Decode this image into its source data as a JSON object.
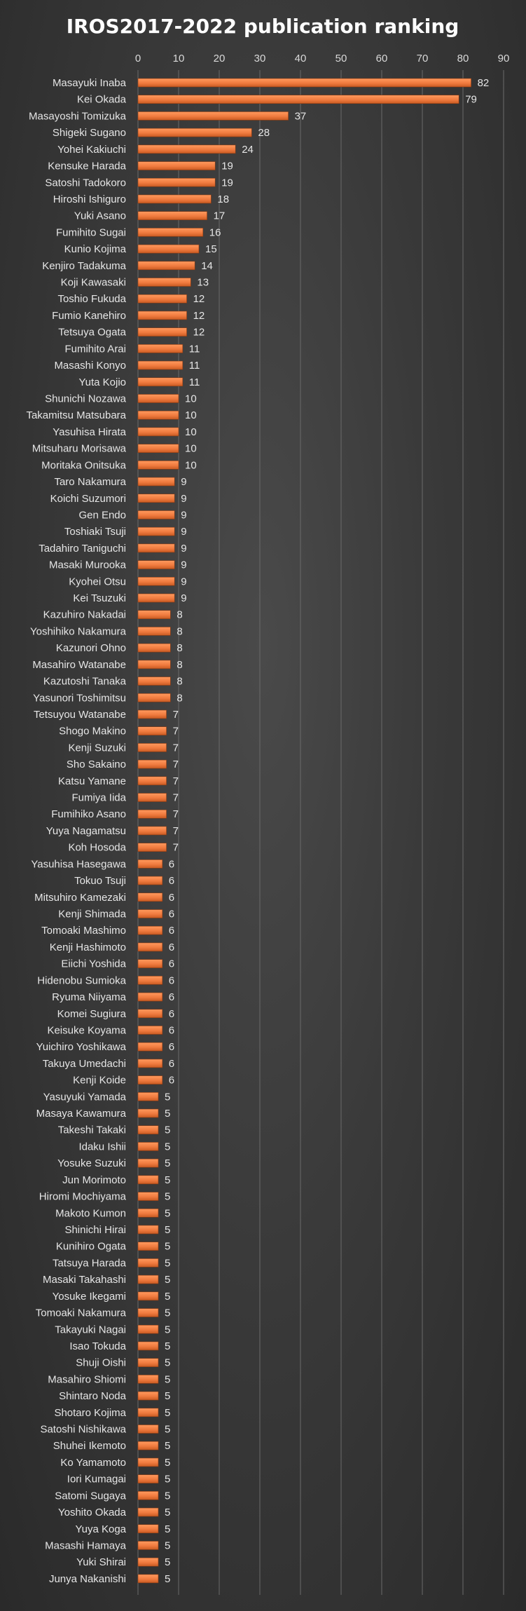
{
  "chart_data": {
    "type": "bar",
    "orientation": "horizontal",
    "title": "IROS2017-2022 publication ranking",
    "xlim": [
      0,
      90
    ],
    "x_ticks": [
      0,
      10,
      20,
      30,
      40,
      50,
      60,
      70,
      80,
      90
    ],
    "grid": true,
    "legend": "none",
    "bar_color": "#f07b3f",
    "categories": [
      "Masayuki Inaba",
      "Kei Okada",
      "Masayoshi Tomizuka",
      "Shigeki Sugano",
      "Yohei Kakiuchi",
      "Kensuke Harada",
      "Satoshi Tadokoro",
      "Hiroshi Ishiguro",
      "Yuki Asano",
      "Fumihito Sugai",
      "Kunio Kojima",
      "Kenjiro Tadakuma",
      "Koji Kawasaki",
      "Toshio Fukuda",
      "Fumio Kanehiro",
      "Tetsuya Ogata",
      "Fumihito Arai",
      "Masashi Konyo",
      "Yuta Kojio",
      "Shunichi Nozawa",
      "Takamitsu Matsubara",
      "Yasuhisa Hirata",
      "Mitsuharu Morisawa",
      "Moritaka Onitsuka",
      "Taro Nakamura",
      "Koichi Suzumori",
      "Gen Endo",
      "Toshiaki Tsuji",
      "Tadahiro Taniguchi",
      "Masaki Murooka",
      "Kyohei Otsu",
      "Kei Tsuzuki",
      "Kazuhiro Nakadai",
      "Yoshihiko Nakamura",
      "Kazunori Ohno",
      "Masahiro Watanabe",
      "Kazutoshi Tanaka",
      "Yasunori Toshimitsu",
      "Tetsuyou Watanabe",
      "Shogo Makino",
      "Kenji Suzuki",
      "Sho Sakaino",
      "Katsu Yamane",
      "Fumiya Iida",
      "Fumihiko Asano",
      "Yuya Nagamatsu",
      "Koh Hosoda",
      "Yasuhisa Hasegawa",
      "Tokuo Tsuji",
      "Mitsuhiro Kamezaki",
      "Kenji Shimada",
      "Tomoaki Mashimo",
      "Kenji Hashimoto",
      "Eiichi Yoshida",
      "Hidenobu Sumioka",
      "Ryuma Niiyama",
      "Komei Sugiura",
      "Keisuke Koyama",
      "Yuichiro Yoshikawa",
      "Takuya Umedachi",
      "Kenji Koide",
      "Yasuyuki Yamada",
      "Masaya Kawamura",
      "Takeshi Takaki",
      "Idaku Ishii",
      "Yosuke Suzuki",
      "Jun Morimoto",
      "Hiromi Mochiyama",
      "Makoto Kumon",
      "Shinichi Hirai",
      "Kunihiro Ogata",
      "Tatsuya Harada",
      "Masaki Takahashi",
      "Yosuke Ikegami",
      "Tomoaki Nakamura",
      "Takayuki Nagai",
      "Isao Tokuda",
      "Shuji Oishi",
      "Masahiro Shiomi",
      "Shintaro Noda",
      "Shotaro Kojima",
      "Satoshi Nishikawa",
      "Shuhei Ikemoto",
      "Ko Yamamoto",
      "Iori Kumagai",
      "Satomi Sugaya",
      "Yoshito Okada",
      "Yuya Koga",
      "Masashi Hamaya",
      "Yuki Shirai",
      "Junya Nakanishi"
    ],
    "values": [
      82,
      79,
      37,
      28,
      24,
      19,
      19,
      18,
      17,
      16,
      15,
      14,
      13,
      12,
      12,
      12,
      11,
      11,
      11,
      10,
      10,
      10,
      10,
      10,
      9,
      9,
      9,
      9,
      9,
      9,
      9,
      9,
      8,
      8,
      8,
      8,
      8,
      8,
      7,
      7,
      7,
      7,
      7,
      7,
      7,
      7,
      7,
      6,
      6,
      6,
      6,
      6,
      6,
      6,
      6,
      6,
      6,
      6,
      6,
      6,
      6,
      5,
      5,
      5,
      5,
      5,
      5,
      5,
      5,
      5,
      5,
      5,
      5,
      5,
      5,
      5,
      5,
      5,
      5,
      5,
      5,
      5,
      5,
      5,
      5,
      5,
      5,
      5,
      5,
      5,
      5
    ]
  }
}
